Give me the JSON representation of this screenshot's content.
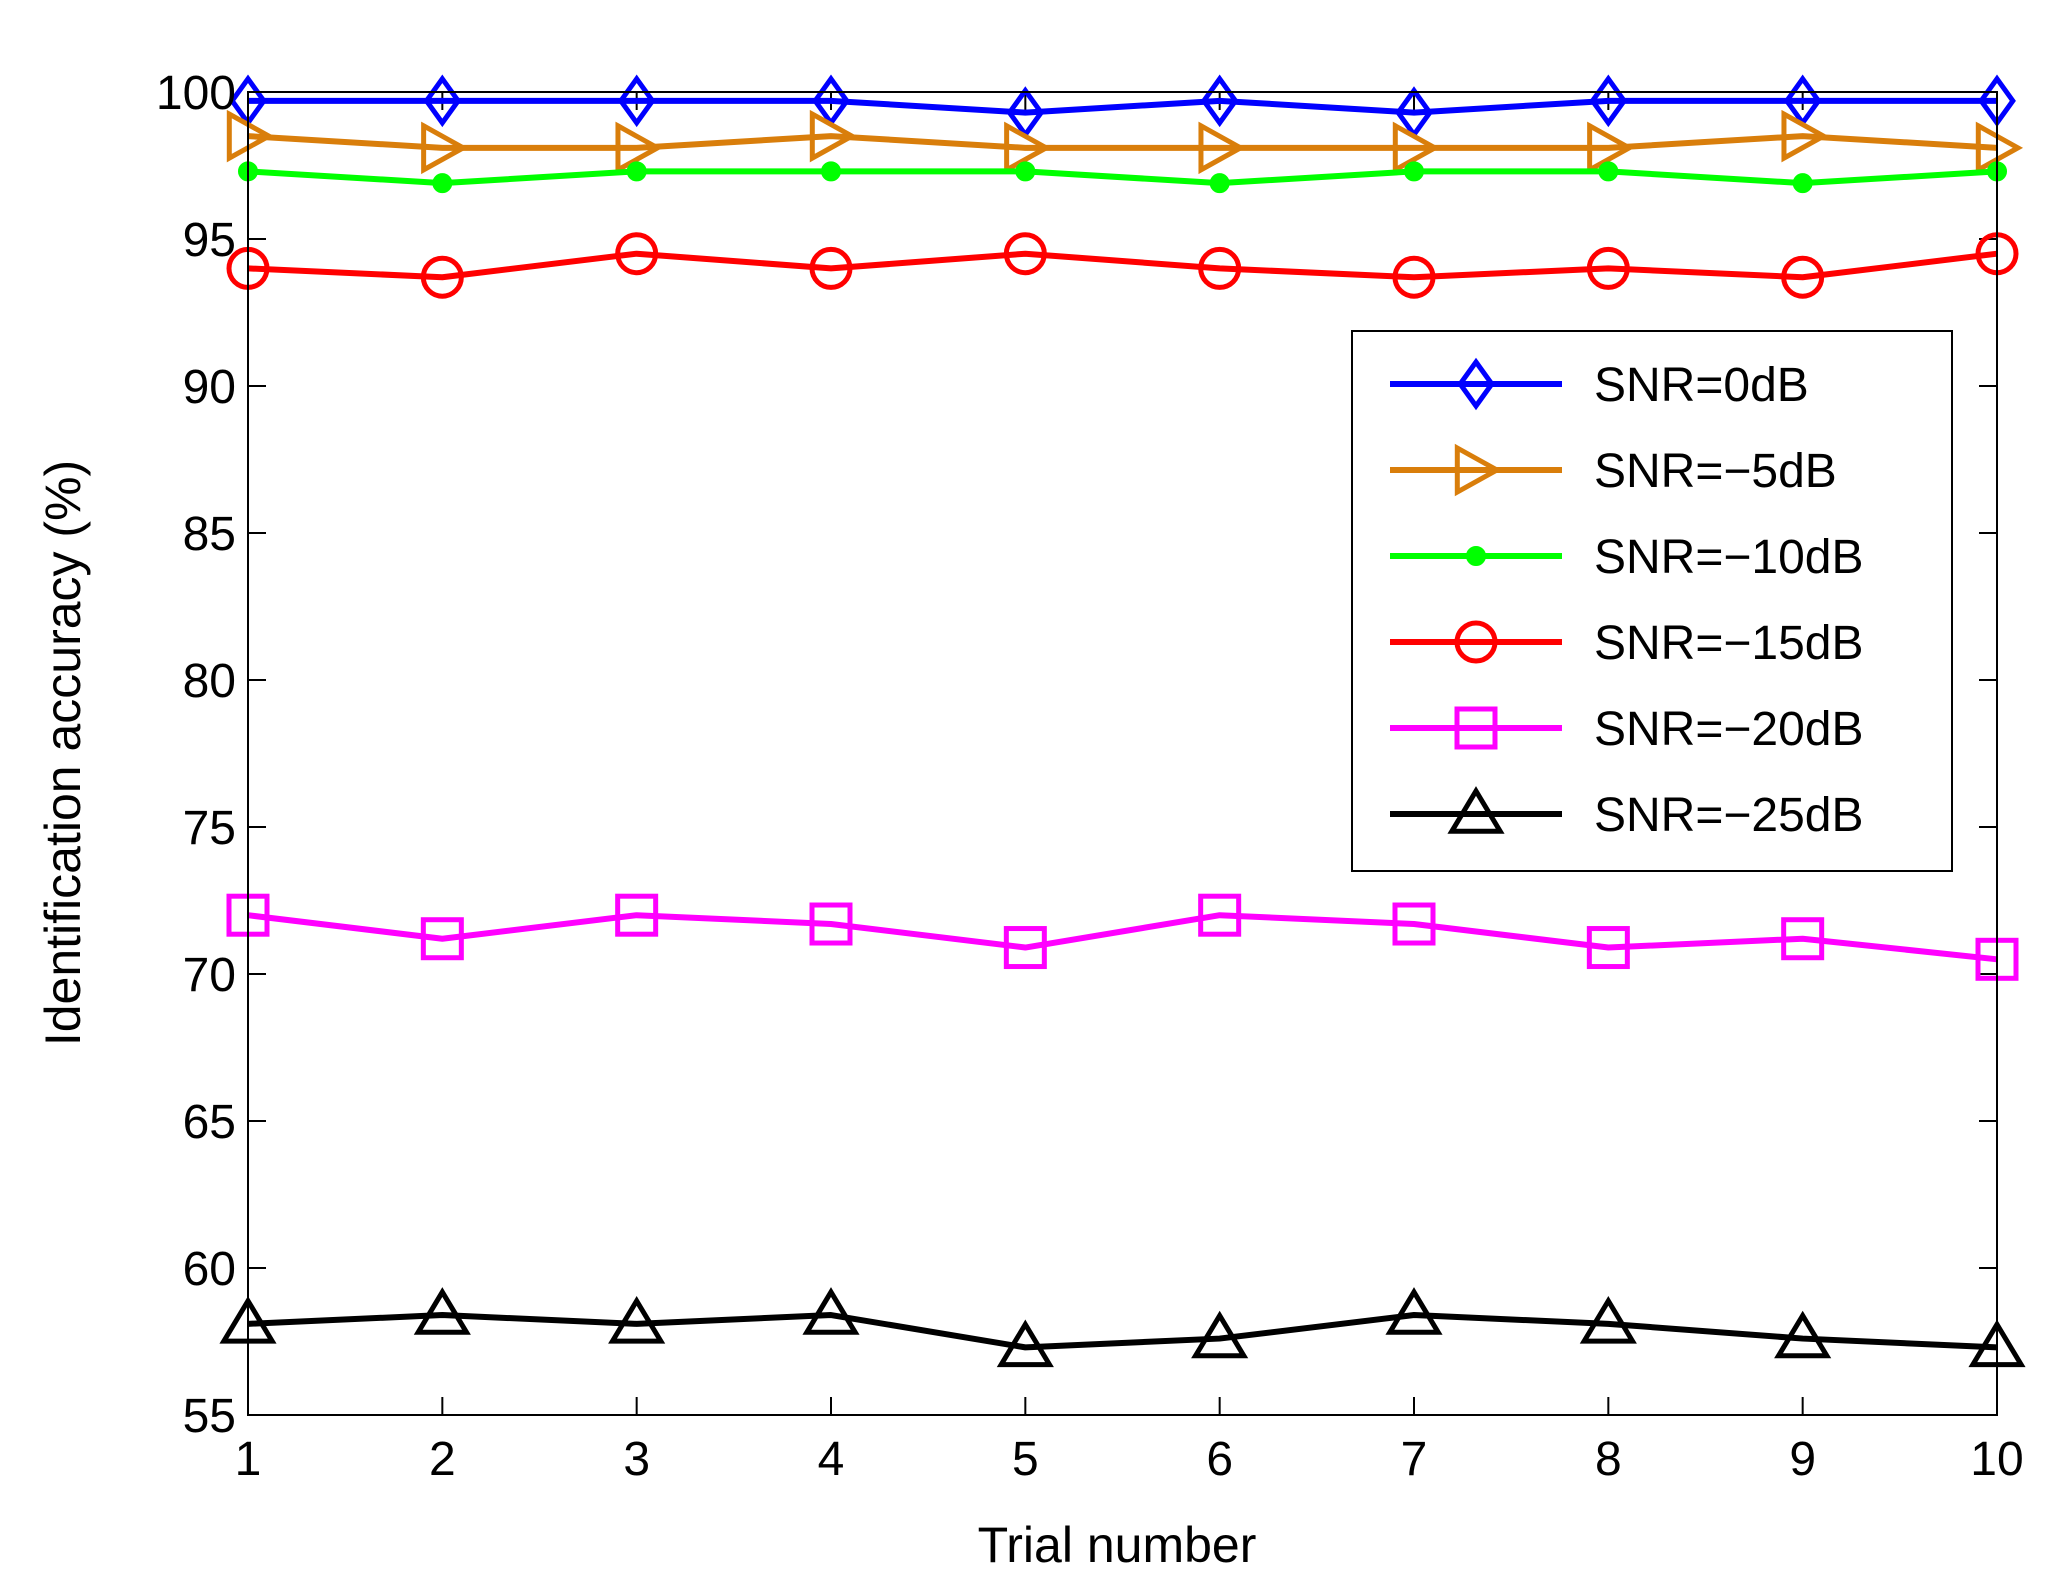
{
  "chart_data": {
    "type": "line",
    "xlabel": "Trial number",
    "ylabel": "Identification accuracy (%)",
    "xlim": [
      1,
      10
    ],
    "ylim": [
      55,
      100
    ],
    "xticks": [
      1,
      2,
      3,
      4,
      5,
      6,
      7,
      8,
      9,
      10
    ],
    "yticks": [
      55,
      60,
      65,
      70,
      75,
      80,
      85,
      90,
      95,
      100
    ],
    "grid": false,
    "legend_position": "upper-right",
    "x": [
      1,
      2,
      3,
      4,
      5,
      6,
      7,
      8,
      9,
      10
    ],
    "series": [
      {
        "name": "SNR=0dB",
        "color": "#0000ff",
        "marker": "diamond",
        "values": [
          99.7,
          99.7,
          99.7,
          99.7,
          99.3,
          99.7,
          99.3,
          99.7,
          99.7,
          99.7
        ]
      },
      {
        "name": "SNR=−5dB",
        "color": "#d97e0b",
        "marker": "triangle-right",
        "values": [
          98.5,
          98.1,
          98.1,
          98.5,
          98.1,
          98.1,
          98.1,
          98.1,
          98.5,
          98.1
        ]
      },
      {
        "name": "SNR=−10dB",
        "color": "#00ff00",
        "marker": "dot",
        "values": [
          97.3,
          96.9,
          97.3,
          97.3,
          97.3,
          96.9,
          97.3,
          97.3,
          96.9,
          97.3
        ]
      },
      {
        "name": "SNR=−15dB",
        "color": "#ff0000",
        "marker": "circle",
        "values": [
          94.0,
          93.7,
          94.5,
          94.0,
          94.5,
          94.0,
          93.7,
          94.0,
          93.7,
          94.5
        ]
      },
      {
        "name": "SNR=−20dB",
        "color": "#ff00ff",
        "marker": "square",
        "values": [
          72.0,
          71.2,
          72.0,
          71.7,
          70.9,
          72.0,
          71.7,
          70.9,
          71.2,
          70.5
        ]
      },
      {
        "name": "SNR=−25dB",
        "color": "#000000",
        "marker": "triangle-up",
        "values": [
          58.1,
          58.4,
          58.1,
          58.4,
          57.3,
          57.6,
          58.4,
          58.1,
          57.6,
          57.3
        ]
      }
    ]
  }
}
